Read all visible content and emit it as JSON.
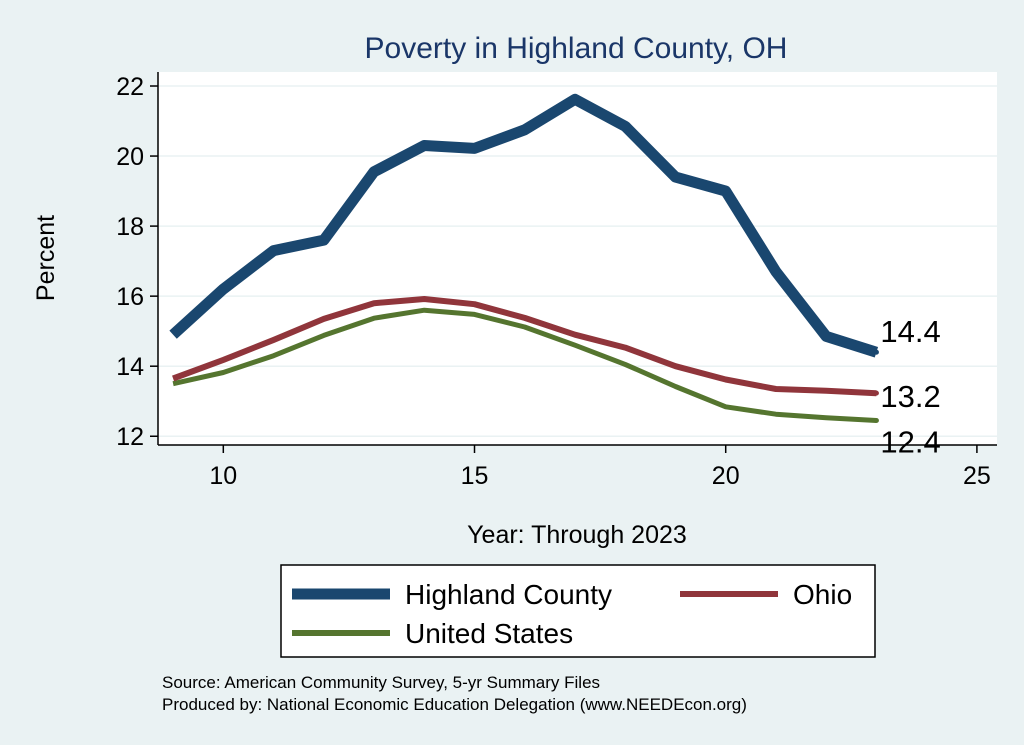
{
  "chart_data": {
    "type": "line",
    "title": "Poverty in Highland County, OH",
    "xlabel": "Year: Through 2023",
    "ylabel": "Percent",
    "xlim": [
      8.7,
      25.4
    ],
    "ylim": [
      11.75,
      22.4
    ],
    "xticks": [
      10,
      15,
      20,
      25
    ],
    "yticks": [
      12,
      14,
      16,
      18,
      20,
      22
    ],
    "grid": "horizontal",
    "legend_position": "bottom",
    "x": [
      9,
      10,
      11,
      12,
      13,
      14,
      15,
      16,
      17,
      18,
      19,
      20,
      21,
      22,
      23
    ],
    "series": [
      {
        "name": "Highland County",
        "color": "#1a476f",
        "values": [
          14.9,
          16.2,
          17.3,
          17.6,
          19.55,
          20.3,
          20.22,
          20.75,
          21.62,
          20.85,
          19.4,
          19.0,
          16.7,
          14.85,
          14.4
        ],
        "end_label": "14.4"
      },
      {
        "name": "Ohio",
        "color": "#90353b",
        "values": [
          13.65,
          14.18,
          14.75,
          15.35,
          15.8,
          15.92,
          15.77,
          15.38,
          14.9,
          14.53,
          14.0,
          13.62,
          13.35,
          13.3,
          13.23
        ],
        "end_label": "13.2"
      },
      {
        "name": "United States",
        "color": "#55752f",
        "values": [
          13.5,
          13.82,
          14.3,
          14.88,
          15.37,
          15.6,
          15.48,
          15.12,
          14.6,
          14.05,
          13.42,
          12.84,
          12.63,
          12.53,
          12.45
        ],
        "end_label": "12.4"
      }
    ]
  },
  "notes": {
    "source": "Source: American Community Survey, 5-yr Summary Files",
    "produced": "Produced by: National Economic Education Delegation (www.NEEDEcon.org)"
  }
}
